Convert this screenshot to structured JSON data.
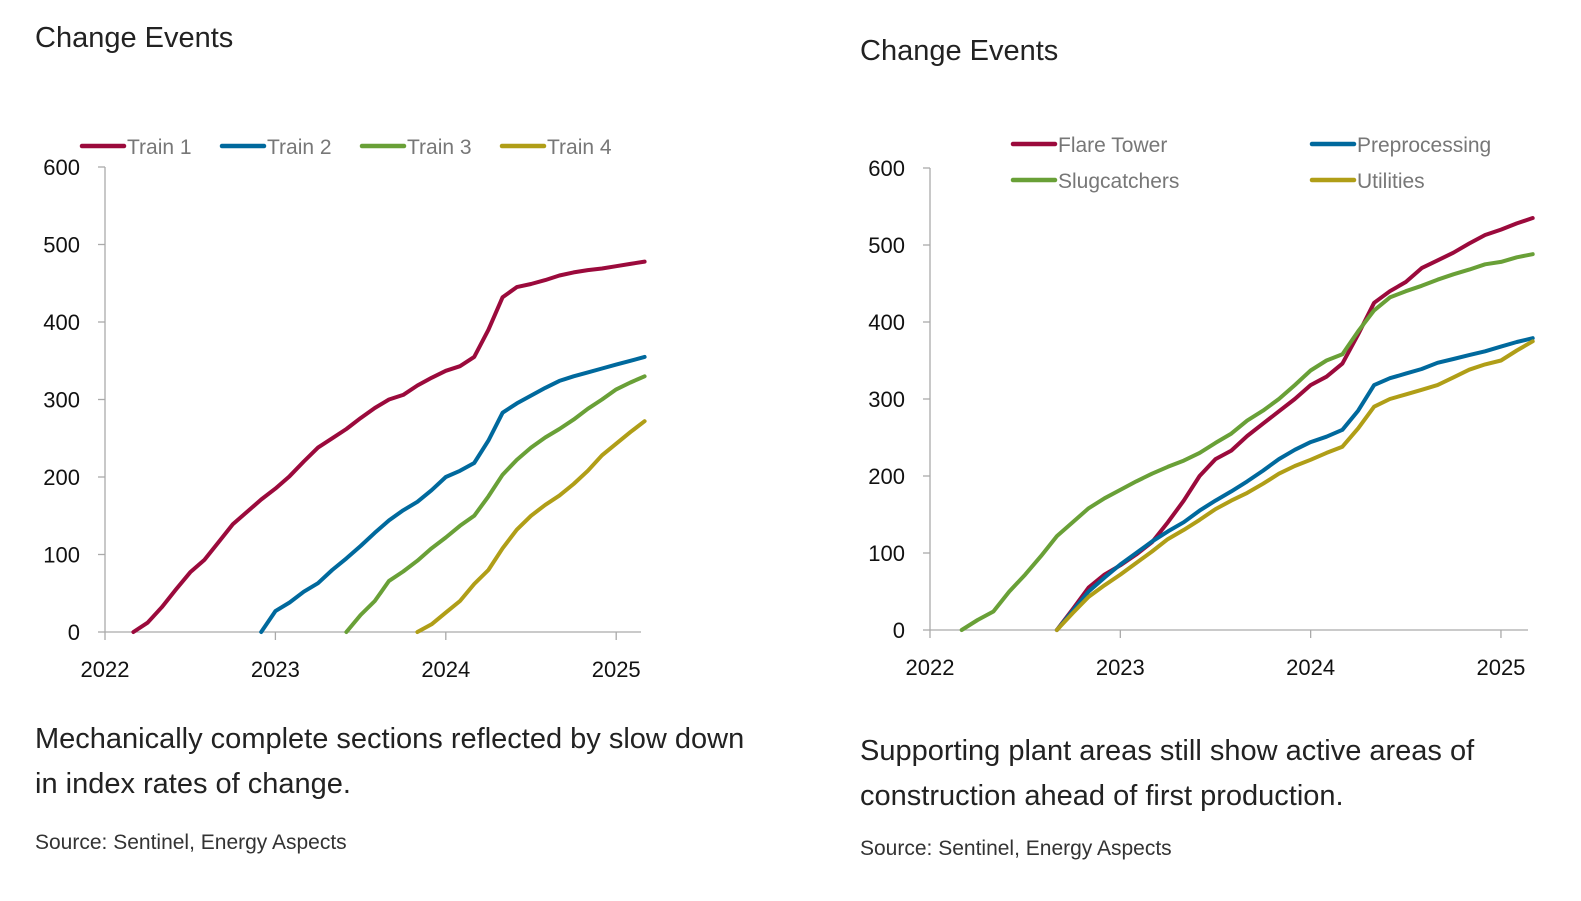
{
  "panels": [
    {
      "title": "Change Events",
      "caption": "Mechanically complete sections reflected by slow down in index rates of change.",
      "source": "Source: Sentinel, Energy Aspects"
    },
    {
      "title": "Change Events",
      "caption": "Supporting plant areas still show active areas of construction ahead of first production.",
      "source": "Source: Sentinel, Energy Aspects"
    }
  ],
  "chart_data": [
    {
      "type": "line",
      "title": "Change Events",
      "xlabel": "",
      "ylabel": "",
      "ylim": [
        0,
        600
      ],
      "yticks": [
        0,
        100,
        200,
        300,
        400,
        500,
        600
      ],
      "xticks": [
        "2022",
        "2023",
        "2024",
        "2025"
      ],
      "xlim": [
        "2022-01",
        "2025-03"
      ],
      "x_resolution": "monthly",
      "grid": false,
      "legend_placement": "top",
      "series": [
        {
          "name": "Train 1",
          "color": "#9b0a3c",
          "start": "2022-03",
          "values": [
            0,
            12,
            32,
            55,
            77,
            93,
            116,
            139,
            155,
            171,
            185,
            201,
            220,
            238,
            250,
            262,
            276,
            289,
            300,
            306,
            318,
            328,
            337,
            343,
            355,
            390,
            432,
            445,
            449,
            454,
            460,
            464,
            467,
            469,
            472,
            475,
            478
          ]
        },
        {
          "name": "Train 2",
          "color": "#00699d",
          "start": "2022-12",
          "values": [
            0,
            27,
            38,
            52,
            63,
            80,
            95,
            111,
            128,
            144,
            157,
            168,
            183,
            200,
            208,
            218,
            247,
            283,
            295,
            305,
            315,
            324,
            330,
            335,
            340,
            345,
            350,
            355
          ]
        },
        {
          "name": "Train 3",
          "color": "#69a037",
          "start": "2023-06",
          "values": [
            0,
            22,
            40,
            66,
            78,
            92,
            108,
            122,
            137,
            150,
            175,
            203,
            222,
            238,
            251,
            262,
            274,
            288,
            300,
            313,
            322,
            330
          ]
        },
        {
          "name": "Train 4",
          "color": "#b09e17",
          "start": "2023-11",
          "values": [
            0,
            10,
            25,
            40,
            62,
            80,
            108,
            132,
            150,
            164,
            176,
            191,
            208,
            228,
            243,
            258,
            272
          ]
        }
      ]
    },
    {
      "type": "line",
      "title": "Change Events",
      "xlabel": "",
      "ylabel": "",
      "ylim": [
        0,
        600
      ],
      "yticks": [
        0,
        100,
        200,
        300,
        400,
        500,
        600
      ],
      "xticks": [
        "2022",
        "2023",
        "2024",
        "2025"
      ],
      "xlim": [
        "2022-01",
        "2025-03"
      ],
      "x_resolution": "monthly",
      "grid": false,
      "legend_placement": "top",
      "series": [
        {
          "name": "Flare Tower",
          "color": "#9b0a3c",
          "start": "2022-09",
          "values": [
            0,
            27,
            55,
            72,
            84,
            98,
            114,
            140,
            168,
            200,
            222,
            233,
            252,
            268,
            284,
            300,
            318,
            329,
            346,
            384,
            425,
            440,
            452,
            470,
            480,
            490,
            502,
            513,
            520,
            528,
            535
          ]
        },
        {
          "name": "Preprocessing",
          "color": "#00699d",
          "start": "2022-09",
          "values": [
            0,
            25,
            50,
            68,
            85,
            100,
            115,
            128,
            140,
            155,
            168,
            180,
            193,
            207,
            222,
            234,
            244,
            251,
            260,
            285,
            318,
            327,
            333,
            339,
            347,
            352,
            357,
            362,
            368,
            374,
            379
          ]
        },
        {
          "name": "Slugcatchers",
          "color": "#69a037",
          "start": "2022-03",
          "values": [
            0,
            13,
            24,
            50,
            72,
            96,
            122,
            140,
            158,
            171,
            182,
            193,
            203,
            212,
            220,
            230,
            243,
            255,
            272,
            285,
            300,
            318,
            337,
            350,
            358,
            388,
            415,
            432,
            440,
            447,
            455,
            462,
            468,
            475,
            478,
            484,
            488
          ]
        },
        {
          "name": "Utilities",
          "color": "#b09e17",
          "start": "2022-09",
          "values": [
            0,
            22,
            43,
            58,
            72,
            87,
            102,
            118,
            130,
            143,
            157,
            168,
            178,
            190,
            203,
            213,
            221,
            230,
            238,
            262,
            290,
            300,
            306,
            312,
            318,
            328,
            338,
            345,
            350,
            363,
            375
          ]
        }
      ]
    }
  ]
}
